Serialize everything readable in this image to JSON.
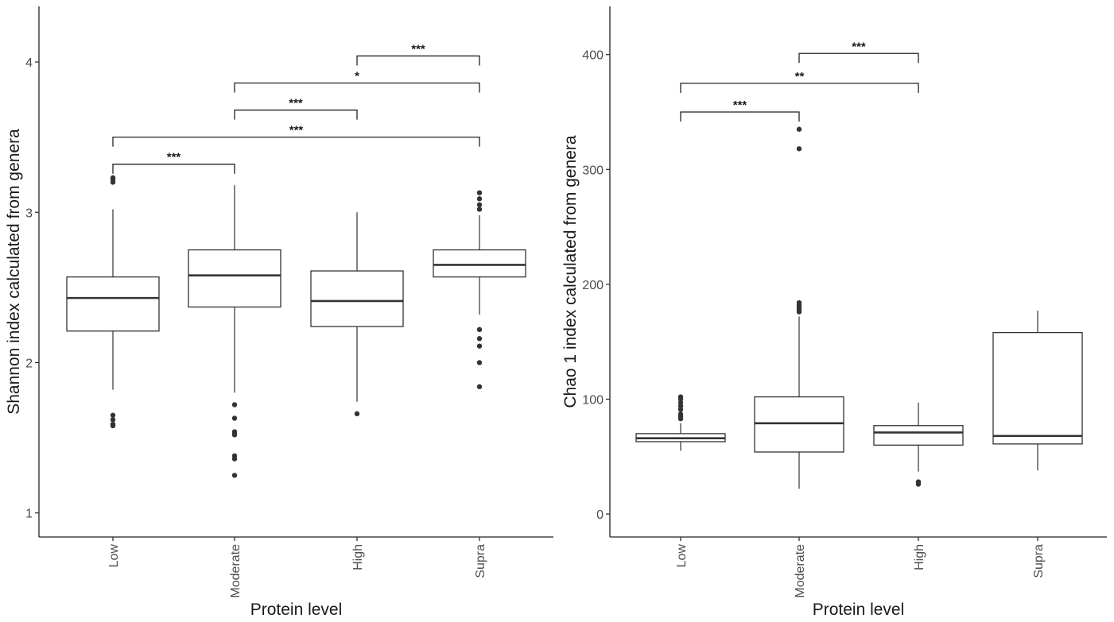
{
  "chart_data": [
    {
      "type": "boxplot",
      "xlabel": "Protein level",
      "ylabel": "Shannon index calculated from genera",
      "ylim": [
        0.84,
        4.37
      ],
      "yticks": [
        1,
        2,
        3,
        4
      ],
      "categories": [
        "Low",
        "Moderate",
        "High",
        "Supra"
      ],
      "boxes": [
        {
          "category": "Low",
          "whisker_low": 1.82,
          "q1": 2.21,
          "median": 2.43,
          "q3": 2.57,
          "whisker_high": 3.02,
          "outliers": [
            1.58,
            1.59,
            1.62,
            1.65,
            3.2,
            3.22,
            3.23
          ]
        },
        {
          "category": "Moderate",
          "whisker_low": 1.8,
          "q1": 2.37,
          "median": 2.58,
          "q3": 2.75,
          "whisker_high": 3.18,
          "outliers": [
            1.25,
            1.36,
            1.38,
            1.52,
            1.53,
            1.54,
            1.63,
            1.72
          ]
        },
        {
          "category": "High",
          "whisker_low": 1.74,
          "q1": 2.24,
          "median": 2.41,
          "q3": 2.61,
          "whisker_high": 3.0,
          "outliers": [
            1.66
          ]
        },
        {
          "category": "Supra",
          "whisker_low": 2.32,
          "q1": 2.57,
          "median": 2.65,
          "q3": 2.75,
          "whisker_high": 2.98,
          "outliers": [
            1.84,
            2.0,
            2.11,
            2.16,
            2.22,
            3.02,
            3.05,
            3.09,
            3.13
          ]
        }
      ],
      "significance": [
        {
          "from": "Low",
          "to": "Moderate",
          "y": 3.32,
          "label": "***"
        },
        {
          "from": "Low",
          "to": "Supra",
          "y": 3.5,
          "label": "***"
        },
        {
          "from": "Moderate",
          "to": "High",
          "y": 3.68,
          "label": "***"
        },
        {
          "from": "Moderate",
          "to": "Supra",
          "y": 3.86,
          "label": "*"
        },
        {
          "from": "High",
          "to": "Supra",
          "y": 4.04,
          "label": "***"
        }
      ]
    },
    {
      "type": "boxplot",
      "xlabel": "Protein level",
      "ylabel": "Chao 1 index calculated from genera",
      "ylim": [
        -20,
        442
      ],
      "yticks": [
        0,
        100,
        200,
        300,
        400
      ],
      "categories": [
        "Low",
        "Moderate",
        "High",
        "Supra"
      ],
      "boxes": [
        {
          "category": "Low",
          "whisker_low": 55,
          "q1": 63,
          "median": 66,
          "q3": 70,
          "whisker_high": 79,
          "outliers": [
            83,
            85,
            87,
            91,
            94,
            97,
            100,
            102
          ]
        },
        {
          "category": "Moderate",
          "whisker_low": 22,
          "q1": 54,
          "median": 79,
          "q3": 102,
          "whisker_high": 172,
          "outliers": [
            176,
            178,
            180,
            182,
            184,
            318,
            335
          ]
        },
        {
          "category": "High",
          "whisker_low": 37,
          "q1": 60,
          "median": 71,
          "q3": 77,
          "whisker_high": 97,
          "outliers": [
            26,
            28
          ]
        },
        {
          "category": "Supra",
          "whisker_low": 38,
          "q1": 61,
          "median": 68,
          "q3": 158,
          "whisker_high": 177,
          "outliers": []
        }
      ],
      "significance": [
        {
          "from": "Low",
          "to": "Moderate",
          "y": 350,
          "label": "***"
        },
        {
          "from": "Low",
          "to": "High",
          "y": 375,
          "label": "**"
        },
        {
          "from": "Moderate",
          "to": "High",
          "y": 401,
          "label": "***"
        }
      ]
    }
  ]
}
